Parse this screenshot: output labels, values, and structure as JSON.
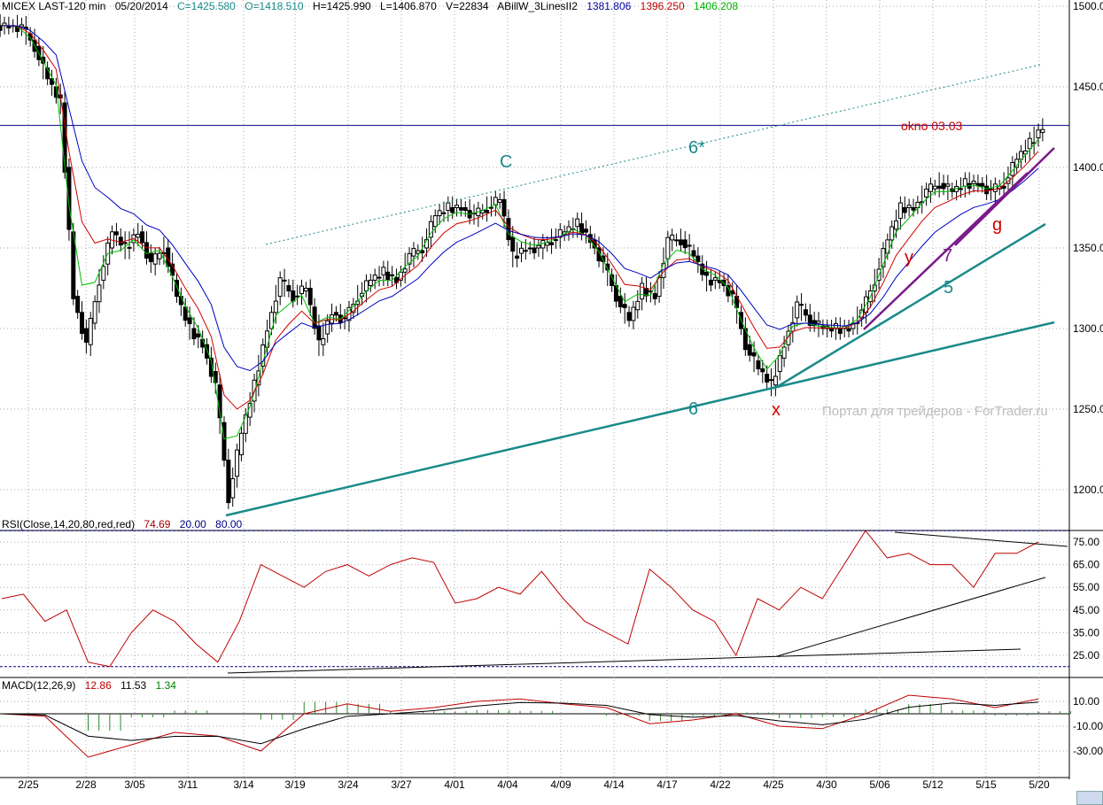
{
  "header": {
    "symbol": "MICEX LAST-120 min",
    "date": "05/20/2014",
    "close": "C=1425.580",
    "open": "O=1418.510",
    "high": "H=1425.990",
    "low": "L=1406.870",
    "volume": "V=22834",
    "indicator": "ABillW_3LinesII2",
    "ind_blue": "1381.806",
    "ind_red": "1396.250",
    "ind_green": "1406.208"
  },
  "rsi_label": {
    "name": "RSI(Close,14,20,80,red,red)",
    "value": "74.69",
    "low": "20.00",
    "high": "80.00"
  },
  "macd_label": {
    "name": "MACD(12,26,9)",
    "macd": "12.86",
    "signal": "11.53",
    "hist": "1.34"
  },
  "annotations": {
    "c": "C",
    "six_star": "6*",
    "six": "6",
    "x": "x",
    "y": "y",
    "seven": "7",
    "five": "5",
    "g": "g",
    "okno": "okno 03.03"
  },
  "watermark": "Портал для трейдеров - ForTrader.ru",
  "colors": {
    "green": "#00c000",
    "red": "#d00000",
    "blue": "#0000c0",
    "teal": "#1a8a8a",
    "purple": "#7a1a8a"
  },
  "chart_data": {
    "type": "candlestick",
    "title": "MICEX LAST-120 min",
    "x_ticks": [
      "2/25",
      "2/28",
      "3/05",
      "3/11",
      "3/14",
      "3/19",
      "3/24",
      "3/27",
      "4/01",
      "4/04",
      "4/09",
      "4/14",
      "4/17",
      "4/22",
      "4/25",
      "4/30",
      "5/06",
      "5/12",
      "5/15",
      "5/20"
    ],
    "price_ticks": [
      "1500.0",
      "1450.0",
      "1400.0",
      "1350.0",
      "1300.0",
      "1250.0",
      "1200.0"
    ],
    "ylim": [
      1185,
      1503
    ],
    "close": [
      1488,
      1487,
      1475,
      1455,
      1440,
      1320,
      1290,
      1330,
      1360,
      1350,
      1360,
      1340,
      1350,
      1320,
      1300,
      1290,
      1265,
      1195,
      1235,
      1265,
      1300,
      1330,
      1320,
      1325,
      1290,
      1310,
      1305,
      1320,
      1330,
      1335,
      1330,
      1345,
      1350,
      1370,
      1375,
      1375,
      1370,
      1375,
      1380,
      1345,
      1350,
      1350,
      1355,
      1360,
      1365,
      1355,
      1340,
      1320,
      1305,
      1325,
      1320,
      1355,
      1355,
      1345,
      1330,
      1330,
      1320,
      1290,
      1275,
      1265,
      1290,
      1315,
      1305,
      1300,
      1300,
      1300,
      1310,
      1330,
      1355,
      1375,
      1375,
      1385,
      1390,
      1385,
      1390,
      1390,
      1385,
      1390,
      1405,
      1415,
      1425
    ],
    "resistance_level": 1426,
    "rsi_ticks": [
      "75.00",
      "65.00",
      "55.00",
      "45.00",
      "35.00",
      "25.00"
    ],
    "rsi": [
      50,
      52,
      40,
      45,
      22,
      20,
      35,
      45,
      40,
      30,
      22,
      40,
      65,
      60,
      55,
      62,
      65,
      60,
      65,
      68,
      66,
      48,
      50,
      55,
      52,
      62,
      50,
      40,
      35,
      30,
      63,
      55,
      45,
      40,
      25,
      50,
      45,
      55,
      50,
      65,
      80,
      68,
      70,
      65,
      65,
      55,
      70,
      70,
      75
    ],
    "macd_ticks": [
      "10.00",
      "-10.00",
      "-30.00"
    ],
    "macd": [
      0,
      -2,
      -35,
      -25,
      -15,
      -18,
      -30,
      0,
      8,
      2,
      5,
      10,
      12,
      8,
      5,
      -8,
      -5,
      0,
      -10,
      -12,
      0,
      15,
      12,
      5,
      12
    ]
  }
}
